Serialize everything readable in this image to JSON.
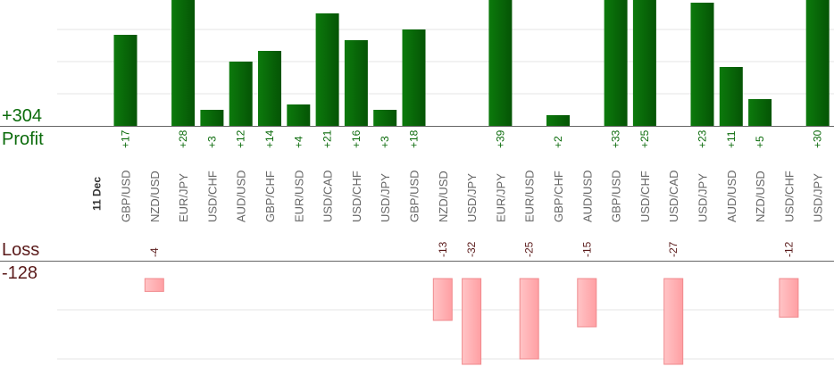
{
  "chart_data": {
    "type": "bar",
    "date_label": "11 Dec",
    "profit": {
      "label": "Profit",
      "total": "+304",
      "color": "#0b6b0b"
    },
    "loss": {
      "label": "Loss",
      "total": "-128",
      "color": "#5a1a1a"
    },
    "categories": [
      "GBP/USD",
      "NZD/USD",
      "EUR/JPY",
      "USD/CHF",
      "AUD/USD",
      "GBP/CHF",
      "EUR/USD",
      "USD/CAD",
      "USD/CHF",
      "USD/JPY",
      "GBP/USD",
      "NZD/USD",
      "USD/JPY",
      "EUR/JPY",
      "EUR/USD",
      "GBP/CHF",
      "AUD/USD",
      "GBP/USD",
      "USD/CHF",
      "USD/CAD",
      "USD/JPY",
      "AUD/USD",
      "NZD/USD",
      "USD/CHF",
      "USD/JPY"
    ],
    "profit_labels": [
      "+17",
      "",
      "+28",
      "+3",
      "+12",
      "+14",
      "+4",
      "+21",
      "+16",
      "+3",
      "+18",
      "",
      "",
      "+39",
      "",
      "+2",
      "",
      "+33",
      "+25",
      "",
      "+23",
      "+11",
      "+5",
      "",
      "+30"
    ],
    "loss_labels": [
      "",
      "-4",
      "",
      "",
      "",
      "",
      "",
      "",
      "",
      "",
      "",
      "-13",
      "-32",
      "",
      "-25",
      "",
      "-15",
      "",
      "",
      "-27",
      "",
      "",
      "",
      "-12",
      ""
    ],
    "series": [
      {
        "name": "Profit",
        "values": [
          17,
          0,
          28,
          3,
          12,
          14,
          4,
          21,
          16,
          3,
          18,
          0,
          0,
          39,
          0,
          2,
          0,
          33,
          25,
          0,
          23,
          11,
          5,
          0,
          30
        ]
      },
      {
        "name": "Loss",
        "values": [
          0,
          -4,
          0,
          0,
          0,
          0,
          0,
          0,
          0,
          0,
          0,
          -13,
          -32,
          0,
          -25,
          0,
          -15,
          0,
          0,
          -27,
          0,
          0,
          0,
          -12,
          0
        ]
      }
    ],
    "profit_ylim": [
      0,
      24
    ],
    "loss_ylim": [
      -20,
      0
    ],
    "grid": true,
    "colors": {
      "profit_bar": "#0a6a0a",
      "loss_bar": "#ffb3b6",
      "profit_text": "#0b6b0b",
      "loss_text": "#5a1a1a",
      "axis": "#666666",
      "grid": "#e6e6e6",
      "category_text": "#666666"
    }
  }
}
